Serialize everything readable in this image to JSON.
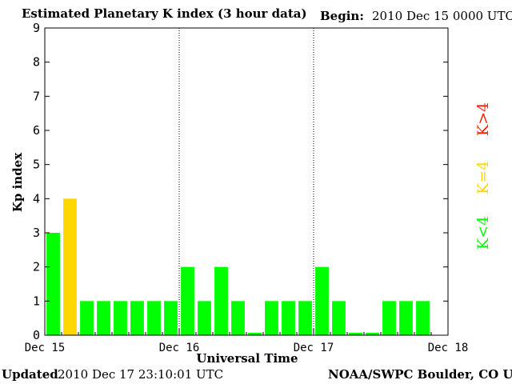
{
  "title": "Estimated Planetary K index (3 hour data)",
  "begin_label": "Begin:",
  "begin_value": "2010 Dec 15 0000 UTC",
  "updated_label": "Updated",
  "updated_value": "2010 Dec 17 23:10:01 UTC",
  "credit": "NOAA/SWPC Boulder, CO USA",
  "legend": [
    {
      "label": "K>4",
      "color": "#ff2000"
    },
    {
      "label": "K=4",
      "color": "#ffd700"
    },
    {
      "label": "K<4",
      "color": "#00ff00"
    }
  ],
  "chart_data": {
    "type": "bar",
    "title": "Estimated Planetary K index (3 hour data)",
    "xlabel": "Universal Time",
    "ylabel": "Kp index",
    "ylim": [
      0,
      9
    ],
    "yticks": [
      0,
      1,
      2,
      3,
      4,
      5,
      6,
      7,
      8,
      9
    ],
    "xticks": [
      "Dec 15",
      "Dec 16",
      "Dec 17",
      "Dec 18"
    ],
    "bar_interval_hours": 3,
    "values": [
      3,
      4,
      1,
      1,
      1,
      1,
      1,
      1,
      2,
      1,
      2,
      1,
      0,
      1,
      1,
      1,
      2,
      1,
      0,
      0,
      1,
      1,
      1
    ],
    "colors": {
      "below4": "#00ff00",
      "equal4": "#ffd700",
      "above4": "#ff2000"
    },
    "day_separators": "dotted"
  }
}
